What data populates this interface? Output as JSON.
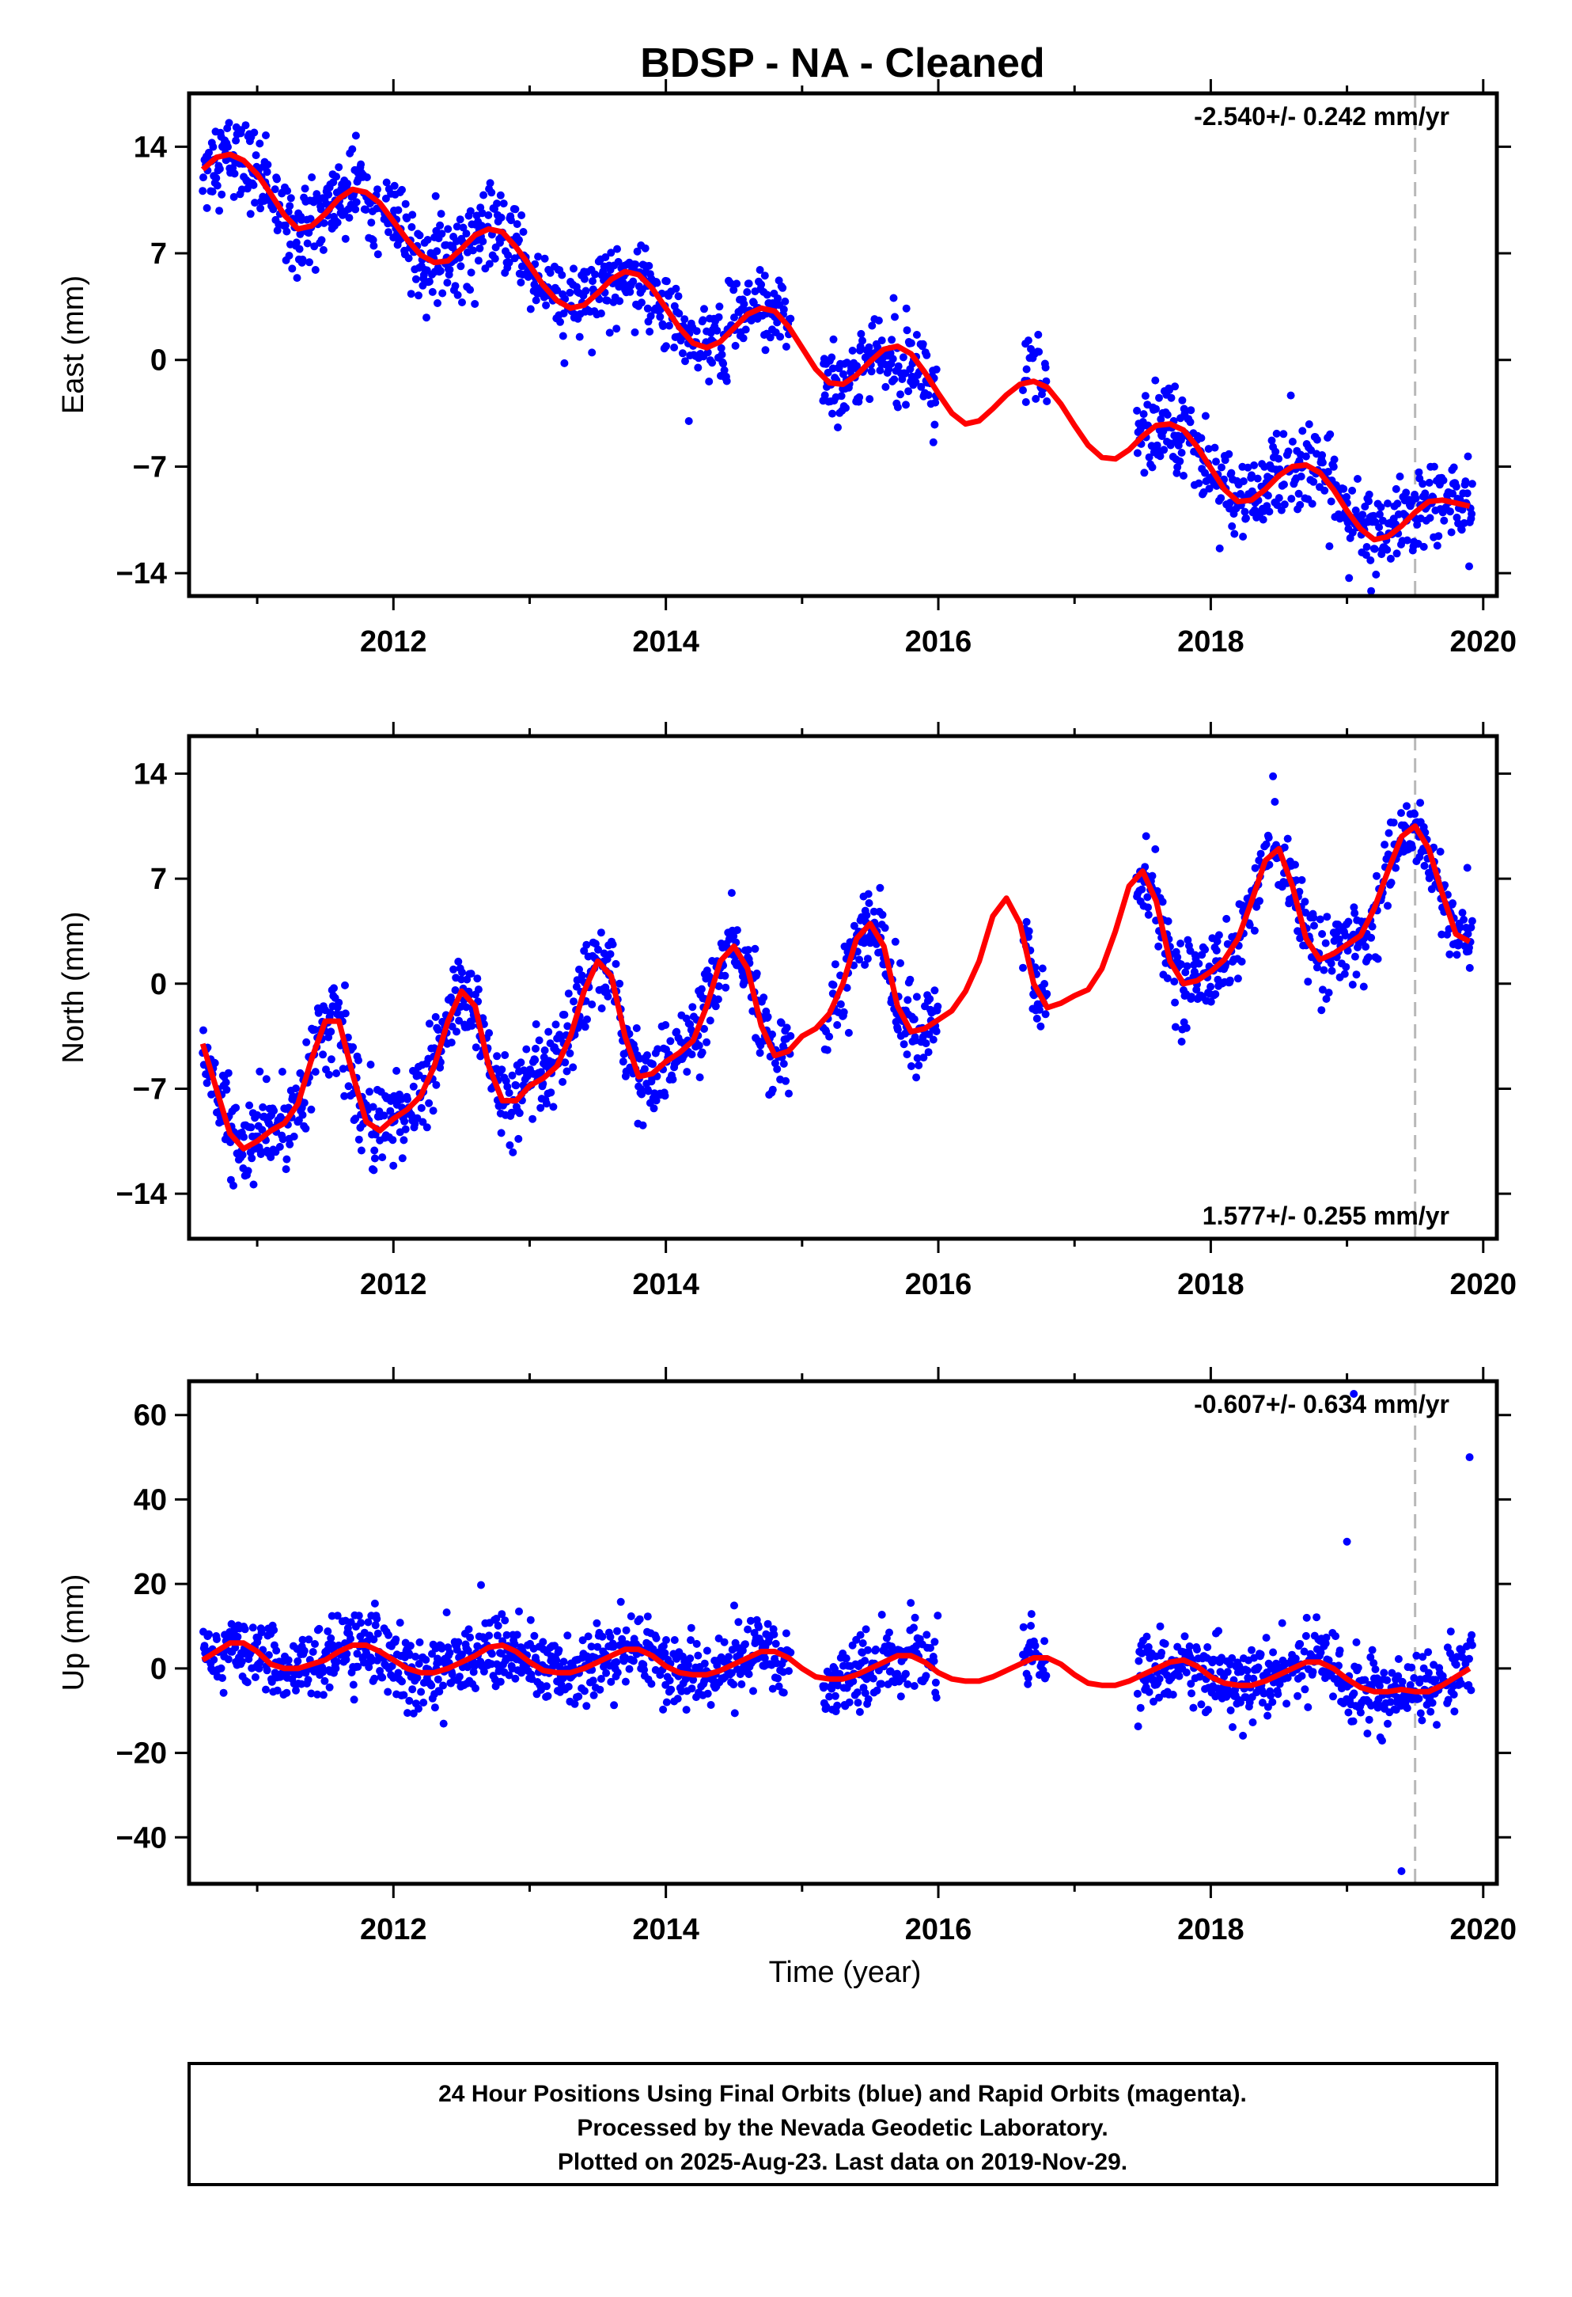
{
  "title": "BDSP  - NA - Cleaned",
  "colors": {
    "points": "#0000ff",
    "model": "#ff0000",
    "frame": "#000000",
    "marker": "#b8b8b8"
  },
  "x_axis_label": "Time (year)",
  "footer": [
    "24 Hour Positions Using Final Orbits (blue) and Rapid Orbits (magenta).",
    "Processed by the Nevada Geodetic Laboratory.",
    "Plotted on 2025-Aug-23. Last data on 2019-Nov-29."
  ],
  "chart_data": [
    {
      "type": "scatter",
      "ylabel": "East (mm)",
      "rate_text": "-2.540+/- 0.242 mm/yr",
      "rate_position": "top-right",
      "xlim": [
        2010.5,
        2020.1
      ],
      "ylim": [
        -15.5,
        17.5
      ],
      "xticks": [
        2012,
        2014,
        2016,
        2018,
        2020
      ],
      "yticks": [
        -14,
        -7,
        0,
        7,
        14
      ],
      "vertical_marker_year": 2019.5,
      "model": {
        "name": "trend + seasonal fit",
        "x": [
          2010.6,
          2010.7,
          2010.8,
          2010.9,
          2011.0,
          2011.1,
          2011.2,
          2011.3,
          2011.4,
          2011.5,
          2011.6,
          2011.7,
          2011.8,
          2011.9,
          2012.0,
          2012.1,
          2012.2,
          2012.3,
          2012.4,
          2012.5,
          2012.6,
          2012.7,
          2012.8,
          2012.9,
          2013.0,
          2013.1,
          2013.2,
          2013.3,
          2013.4,
          2013.5,
          2013.6,
          2013.7,
          2013.8,
          2013.9,
          2014.0,
          2014.1,
          2014.2,
          2014.3,
          2014.4,
          2014.5,
          2014.6,
          2014.7,
          2014.8,
          2014.9,
          2015.0,
          2015.1,
          2015.2,
          2015.3,
          2015.4,
          2015.5,
          2015.6,
          2015.7,
          2015.8,
          2015.9,
          2016.0,
          2016.1,
          2016.2,
          2016.3,
          2016.4,
          2016.5,
          2016.6,
          2016.7,
          2016.8,
          2016.9,
          2017.0,
          2017.1,
          2017.2,
          2017.3,
          2017.4,
          2017.5,
          2017.6,
          2017.7,
          2017.8,
          2017.9,
          2018.0,
          2018.1,
          2018.2,
          2018.3,
          2018.4,
          2018.5,
          2018.6,
          2018.7,
          2018.8,
          2018.9,
          2019.0,
          2019.1,
          2019.2,
          2019.3,
          2019.4,
          2019.5,
          2019.6,
          2019.7,
          2019.8,
          2019.9
        ],
        "y": [
          12.5,
          13.3,
          13.5,
          13.1,
          12.2,
          10.9,
          9.5,
          8.6,
          8.8,
          9.6,
          10.6,
          11.2,
          11.0,
          10.3,
          9.1,
          7.9,
          6.9,
          6.4,
          6.5,
          7.3,
          8.2,
          8.6,
          8.4,
          7.4,
          6.2,
          4.9,
          3.9,
          3.4,
          3.6,
          4.4,
          5.3,
          5.8,
          5.6,
          4.7,
          3.4,
          2.1,
          1.1,
          0.8,
          1.2,
          2.1,
          3.0,
          3.4,
          3.2,
          2.2,
          0.8,
          -0.6,
          -1.5,
          -1.6,
          -1.0,
          -0.1,
          0.7,
          0.9,
          0.4,
          -0.8,
          -2.2,
          -3.5,
          -4.2,
          -4.0,
          -3.2,
          -2.3,
          -1.6,
          -1.4,
          -1.8,
          -2.9,
          -4.3,
          -5.6,
          -6.4,
          -6.5,
          -5.9,
          -5.0,
          -4.3,
          -4.2,
          -4.6,
          -5.7,
          -7.1,
          -8.5,
          -9.3,
          -9.2,
          -8.5,
          -7.6,
          -7.0,
          -6.9,
          -7.4,
          -8.5,
          -9.9,
          -11.1,
          -11.8,
          -11.6,
          -10.9,
          -10.0,
          -9.3,
          -9.2,
          -9.4,
          -9.6
        ]
      },
      "observations": "blue daily positions scattered about the model, gap mid-2016"
    },
    {
      "type": "scatter",
      "ylabel": "North (mm)",
      "rate_text": "1.577+/- 0.255 mm/yr",
      "rate_position": "bottom-right",
      "xlim": [
        2010.5,
        2020.1
      ],
      "ylim": [
        -17,
        16.5
      ],
      "xticks": [
        2012,
        2014,
        2016,
        2018,
        2020
      ],
      "yticks": [
        -14,
        -7,
        0,
        7,
        14
      ],
      "vertical_marker_year": 2019.5,
      "model": {
        "name": "trend + seasonal fit",
        "x": [
          2010.6,
          2010.7,
          2010.8,
          2010.9,
          2011.0,
          2011.1,
          2011.2,
          2011.3,
          2011.4,
          2011.5,
          2011.6,
          2011.7,
          2011.8,
          2011.9,
          2012.0,
          2012.1,
          2012.2,
          2012.3,
          2012.4,
          2012.5,
          2012.6,
          2012.7,
          2012.8,
          2012.9,
          2013.0,
          2013.1,
          2013.2,
          2013.3,
          2013.4,
          2013.5,
          2013.6,
          2013.7,
          2013.8,
          2013.9,
          2014.0,
          2014.1,
          2014.2,
          2014.3,
          2014.4,
          2014.5,
          2014.6,
          2014.7,
          2014.8,
          2014.9,
          2015.0,
          2015.1,
          2015.2,
          2015.3,
          2015.4,
          2015.5,
          2015.6,
          2015.7,
          2015.8,
          2015.9,
          2016.0,
          2016.1,
          2016.2,
          2016.3,
          2016.4,
          2016.5,
          2016.6,
          2016.7,
          2016.8,
          2016.9,
          2017.0,
          2017.1,
          2017.2,
          2017.3,
          2017.4,
          2017.5,
          2017.6,
          2017.7,
          2017.8,
          2017.9,
          2018.0,
          2018.1,
          2018.2,
          2018.3,
          2018.4,
          2018.5,
          2018.6,
          2018.7,
          2018.8,
          2018.9,
          2019.0,
          2019.1,
          2019.2,
          2019.3,
          2019.4,
          2019.5,
          2019.6,
          2019.7,
          2019.8,
          2019.9
        ],
        "y": [
          -4.0,
          -7.0,
          -10.0,
          -11.0,
          -10.5,
          -9.8,
          -9.3,
          -8.0,
          -5.0,
          -2.5,
          -2.5,
          -6.0,
          -9.2,
          -9.8,
          -9.0,
          -8.4,
          -7.5,
          -5.5,
          -2.5,
          -0.5,
          -1.5,
          -5.5,
          -7.8,
          -7.8,
          -6.8,
          -6.3,
          -5.5,
          -3.5,
          -0.5,
          1.5,
          0.5,
          -3.5,
          -6.2,
          -6.0,
          -5.2,
          -4.6,
          -3.8,
          -1.5,
          1.5,
          2.5,
          1.0,
          -2.8,
          -4.8,
          -4.5,
          -3.5,
          -3.0,
          -2.0,
          0.0,
          3.0,
          4.0,
          2.5,
          -1.5,
          -3.2,
          -3.0,
          -2.4,
          -1.8,
          -0.5,
          1.5,
          4.5,
          5.7,
          4.0,
          0.0,
          -1.6,
          -1.3,
          -0.8,
          -0.4,
          1.0,
          3.5,
          6.5,
          7.5,
          5.5,
          1.5,
          0.0,
          0.2,
          0.8,
          1.6,
          3.0,
          5.5,
          8.2,
          9.0,
          6.5,
          3.0,
          1.6,
          2.0,
          2.6,
          3.2,
          5.0,
          7.5,
          9.8,
          10.5,
          9.0,
          6.0,
          3.3,
          2.8
        ]
      },
      "observations": "blue daily positions scattered about the model, gap mid-2016"
    },
    {
      "type": "scatter",
      "ylabel": "Up (mm)",
      "rate_text": "-0.607+/- 0.634 mm/yr",
      "rate_position": "top-right",
      "xlim": [
        2010.5,
        2020.1
      ],
      "ylim": [
        -51,
        68
      ],
      "xticks": [
        2012,
        2014,
        2016,
        2018,
        2020
      ],
      "yticks": [
        -40,
        -20,
        0,
        20,
        40,
        60
      ],
      "vertical_marker_year": 2019.5,
      "outliers": [
        [
          2019.4,
          -48
        ],
        [
          2019.0,
          30
        ],
        [
          2019.9,
          50
        ],
        [
          2019.05,
          65
        ]
      ],
      "model": {
        "name": "trend + seasonal fit",
        "x": [
          2010.6,
          2010.7,
          2010.8,
          2010.9,
          2011.0,
          2011.1,
          2011.2,
          2011.3,
          2011.4,
          2011.5,
          2011.6,
          2011.7,
          2011.8,
          2011.9,
          2012.0,
          2012.1,
          2012.2,
          2012.3,
          2012.4,
          2012.5,
          2012.6,
          2012.7,
          2012.8,
          2012.9,
          2013.0,
          2013.1,
          2013.2,
          2013.3,
          2013.4,
          2013.5,
          2013.6,
          2013.7,
          2013.8,
          2013.9,
          2014.0,
          2014.1,
          2014.2,
          2014.3,
          2014.4,
          2014.5,
          2014.6,
          2014.7,
          2014.8,
          2014.9,
          2015.0,
          2015.1,
          2015.2,
          2015.3,
          2015.4,
          2015.5,
          2015.6,
          2015.7,
          2015.8,
          2015.9,
          2016.0,
          2016.1,
          2016.2,
          2016.3,
          2016.4,
          2016.5,
          2016.6,
          2016.7,
          2016.8,
          2016.9,
          2017.0,
          2017.1,
          2017.2,
          2017.3,
          2017.4,
          2017.5,
          2017.6,
          2017.7,
          2017.8,
          2017.9,
          2018.0,
          2018.1,
          2018.2,
          2018.3,
          2018.4,
          2018.5,
          2018.6,
          2018.7,
          2018.8,
          2018.9,
          2019.0,
          2019.1,
          2019.2,
          2019.3,
          2019.4,
          2019.5,
          2019.6,
          2019.7,
          2019.8,
          2019.9
        ],
        "y": [
          2.0,
          4.0,
          6.0,
          6.0,
          4.0,
          1.0,
          0.0,
          0.0,
          1.0,
          2.0,
          4.0,
          5.5,
          5.5,
          4.0,
          2.0,
          0.0,
          -1.0,
          -1.0,
          0.0,
          1.5,
          3.0,
          5.0,
          5.5,
          4.0,
          1.5,
          -0.5,
          -1.0,
          -1.0,
          0.0,
          1.5,
          3.0,
          4.5,
          4.5,
          3.0,
          0.5,
          -1.0,
          -1.5,
          -1.5,
          -0.5,
          1.0,
          2.5,
          4.0,
          4.0,
          2.5,
          0.0,
          -2.0,
          -2.5,
          -2.5,
          -1.5,
          0.0,
          1.5,
          3.0,
          3.0,
          1.5,
          -1.0,
          -2.5,
          -3.0,
          -3.0,
          -2.0,
          -0.5,
          1.0,
          2.5,
          2.5,
          1.0,
          -1.5,
          -3.5,
          -4.0,
          -4.0,
          -3.0,
          -1.5,
          0.0,
          1.5,
          2.0,
          0.5,
          -2.0,
          -3.5,
          -4.0,
          -4.0,
          -3.0,
          -1.5,
          0.0,
          1.5,
          1.5,
          0.0,
          -2.5,
          -4.5,
          -5.5,
          -5.5,
          -5.0,
          -5.5,
          -5.5,
          -4.0,
          -2.0,
          0.0
        ]
      },
      "observations": "blue daily positions scattered about the model, gap mid-2016"
    }
  ]
}
